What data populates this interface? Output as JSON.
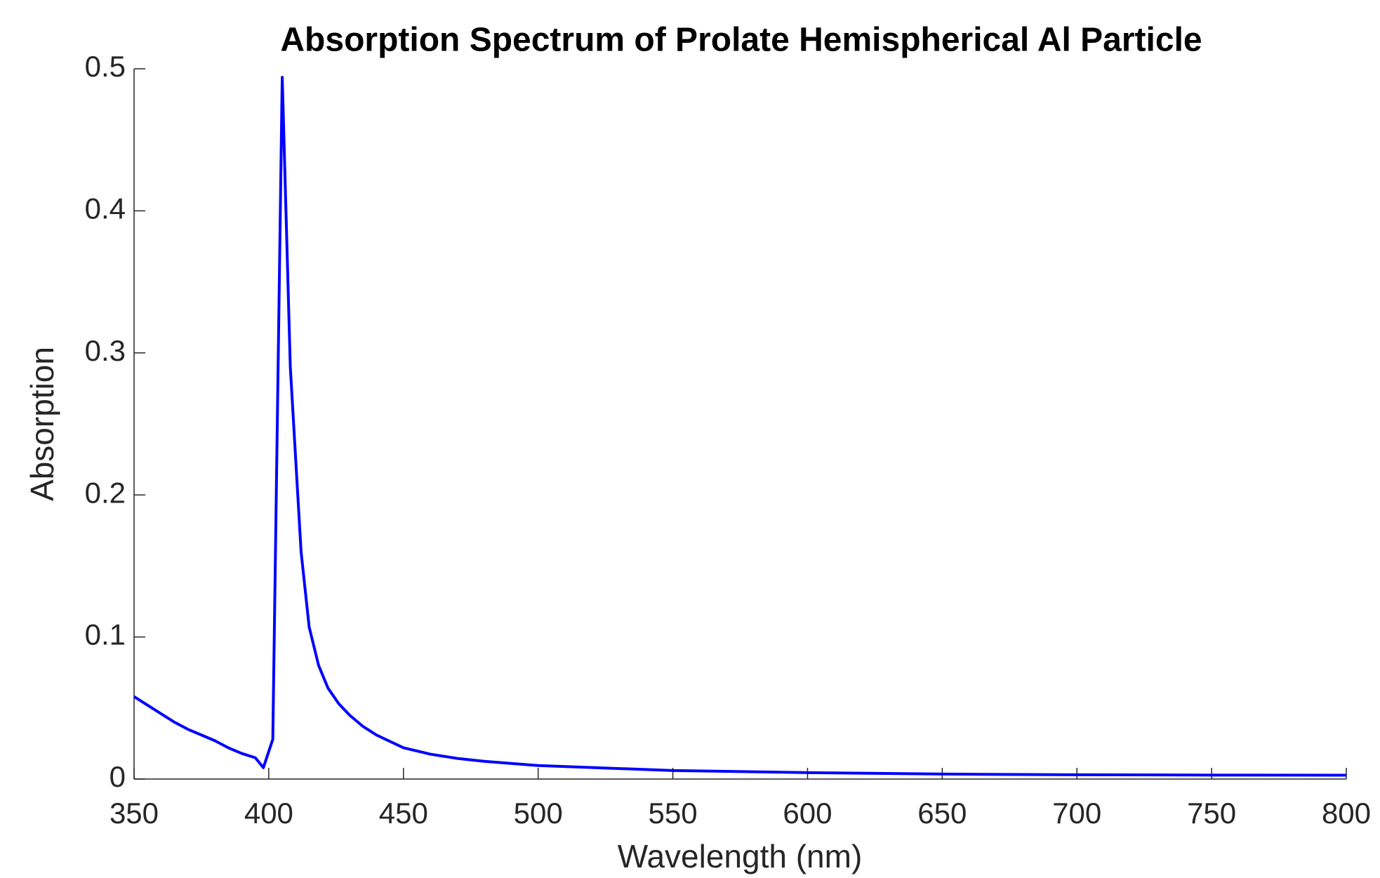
{
  "chart_data": {
    "type": "line",
    "title": "Absorption Spectrum of Prolate Hemispherical Al Particle",
    "x_label": "Wavelength (nm)",
    "y_label": "Absorption",
    "xlim": [
      350,
      800
    ],
    "ylim": [
      0,
      0.5
    ],
    "xticks": [
      350,
      400,
      450,
      500,
      550,
      600,
      650,
      700,
      750,
      800
    ],
    "yticks": [
      0,
      0.1,
      0.2,
      0.3,
      0.4,
      0.5
    ],
    "grid": false,
    "x": [
      350,
      355,
      360,
      365,
      370,
      375,
      380,
      385,
      390,
      395,
      398,
      401.5,
      405,
      408,
      412,
      415,
      418.5,
      422,
      426,
      430,
      435,
      440,
      450,
      460,
      470,
      480,
      500,
      550,
      600,
      650,
      700,
      750,
      800
    ],
    "series": [
      {
        "name": "Absorption",
        "color": "#0000ff",
        "values": [
          0.058,
          0.052,
          0.046,
          0.04,
          0.035,
          0.031,
          0.027,
          0.022,
          0.018,
          0.015,
          0.008,
          0.028,
          0.494,
          0.29,
          0.16,
          0.107,
          0.08,
          0.064,
          0.053,
          0.045,
          0.037,
          0.031,
          0.022,
          0.0175,
          0.0145,
          0.0125,
          0.0095,
          0.006,
          0.0045,
          0.0035,
          0.003,
          0.0028,
          0.0027
        ]
      }
    ]
  }
}
